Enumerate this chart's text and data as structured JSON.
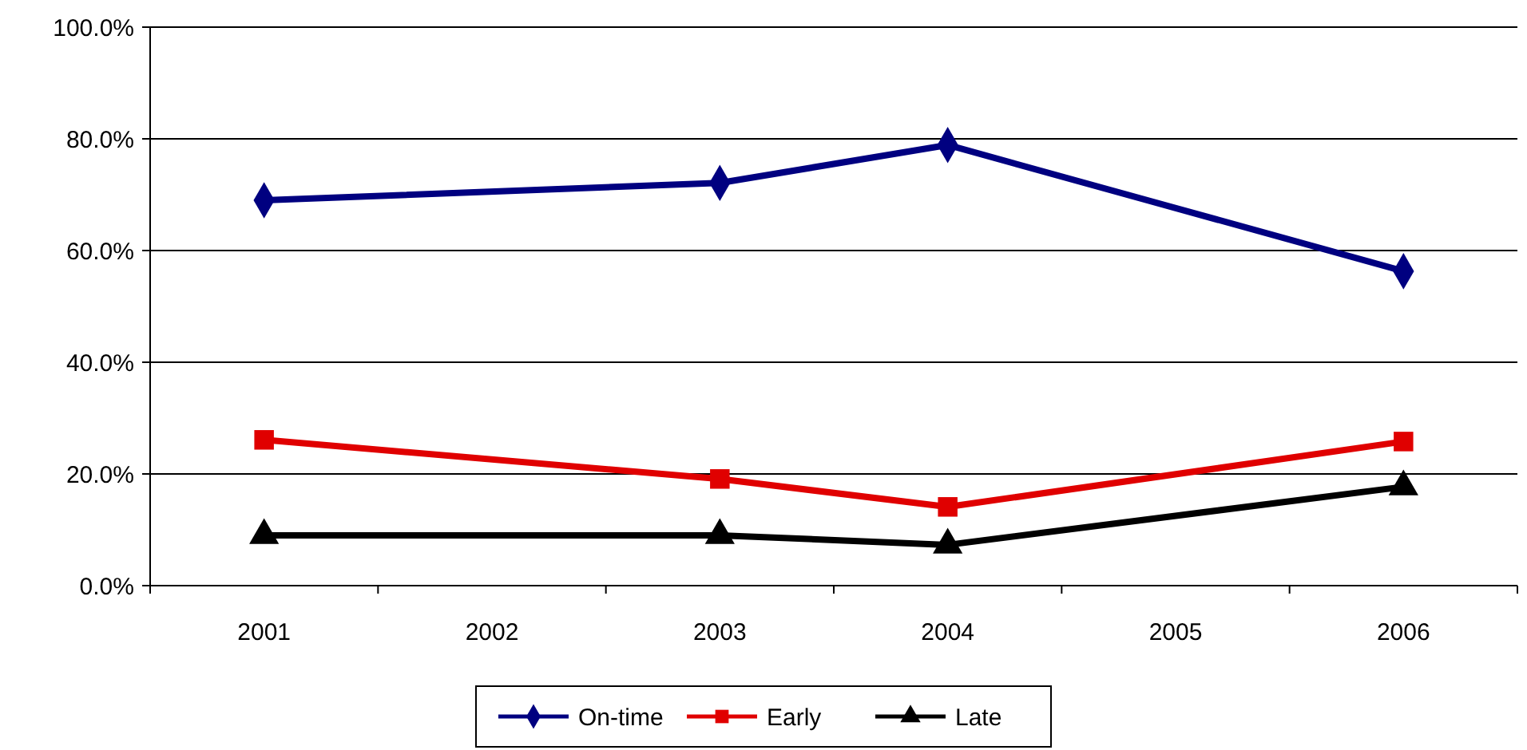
{
  "chart_data": {
    "type": "line",
    "categories": [
      "2001",
      "2002",
      "2003",
      "2004",
      "2005",
      "2006"
    ],
    "series": [
      {
        "name": "On-time",
        "color": "#000080",
        "marker": "diamond",
        "values": [
          69,
          null,
          72.1,
          78.9,
          null,
          56.3
        ]
      },
      {
        "name": "Early",
        "color": "#e00000",
        "marker": "square",
        "values": [
          26.1,
          null,
          19.1,
          14.1,
          null,
          25.8
        ]
      },
      {
        "name": "Late",
        "color": "#000000",
        "marker": "triangle",
        "values": [
          9,
          null,
          9,
          7.3,
          null,
          17.7
        ]
      }
    ],
    "ylim": [
      0,
      100
    ],
    "yticks": [
      {
        "value": 0,
        "label": "0.0%"
      },
      {
        "value": 20,
        "label": "20.0%"
      },
      {
        "value": 40,
        "label": "40.0%"
      },
      {
        "value": 60,
        "label": "60.0%"
      },
      {
        "value": 80,
        "label": "80.0%"
      },
      {
        "value": 100,
        "label": "100.0%"
      }
    ],
    "grid": "y",
    "legend": "bottom",
    "line_style": "solid"
  }
}
